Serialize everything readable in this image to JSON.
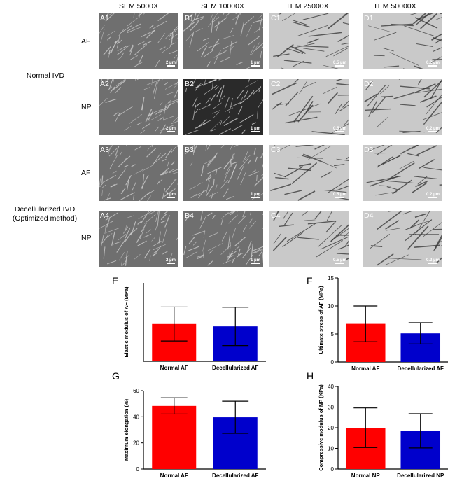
{
  "columns": [
    "SEM 5000X",
    "SEM 10000X",
    "TEM 25000X",
    "TEM 50000X"
  ],
  "groups": {
    "normal": "Normal IVD",
    "decell_line1": "Decellularized IVD",
    "decell_line2": "(Optimized method)"
  },
  "rows": [
    {
      "tissue": "AF",
      "panels": [
        "A1",
        "B1",
        "C1",
        "D1"
      ],
      "scales": [
        "2 μm",
        "1 μm",
        "0.5 μm",
        "0.2 μm"
      ]
    },
    {
      "tissue": "NP",
      "panels": [
        "A2",
        "B2",
        "C2",
        "D2"
      ],
      "scales": [
        "2 μm",
        "1 μm",
        "0.5 μm",
        "0.2 μm"
      ]
    },
    {
      "tissue": "AF",
      "panels": [
        "A3",
        "B3",
        "C3",
        "D3"
      ],
      "scales": [
        "2 μm",
        "1 μm",
        "0.5 μm",
        "0.2 μm"
      ]
    },
    {
      "tissue": "NP",
      "panels": [
        "A4",
        "B4",
        "C4",
        "D4"
      ],
      "scales": [
        "2 μm",
        "1 μm",
        "0.5 μm",
        "0.2 μm"
      ]
    }
  ],
  "chart_data": [
    {
      "panel": "E",
      "type": "bar",
      "categories": [
        "Normal AF",
        "Decellularized AF"
      ],
      "values": [
        19,
        17.8
      ],
      "errors": [
        8.7,
        9.8
      ],
      "colors": [
        "#ff0000",
        "#0000cc"
      ],
      "ylabel": "Elastic modulus of AF (MPa)",
      "ylim": [
        0,
        40
      ],
      "yticks": [],
      "grid": false
    },
    {
      "panel": "F",
      "type": "bar",
      "categories": [
        "Normal AF",
        "Decellularized AF"
      ],
      "values": [
        6.8,
        5.1
      ],
      "errors": [
        3.2,
        1.9
      ],
      "colors": [
        "#ff0000",
        "#0000cc"
      ],
      "ylabel": "Ultimate stress of AF (MPa)",
      "ylim": [
        0,
        15
      ],
      "yticks": [
        "0",
        "5",
        "10",
        "15"
      ],
      "grid": false
    },
    {
      "panel": "G",
      "type": "bar",
      "categories": [
        "Normal AF",
        "Decellularized AF"
      ],
      "values": [
        48.3,
        39.6
      ],
      "errors": [
        6.2,
        12.3
      ],
      "colors": [
        "#ff0000",
        "#0000cc"
      ],
      "ylabel": "Maximum elongation (%)",
      "ylim": [
        0,
        60
      ],
      "yticks": [
        "0",
        "20",
        "40",
        "60"
      ],
      "grid": false
    },
    {
      "panel": "H",
      "type": "bar",
      "categories": [
        "Normal NP",
        "Decellularized NP"
      ],
      "values": [
        20,
        18.5
      ],
      "errors": [
        9.6,
        8.3
      ],
      "colors": [
        "#ff0000",
        "#0000cc"
      ],
      "ylabel": "Compressive modulus of NP (KPa)",
      "ylim": [
        0,
        40
      ],
      "yticks": [
        "0",
        "10",
        "20",
        "30",
        "40"
      ],
      "grid": false
    }
  ]
}
